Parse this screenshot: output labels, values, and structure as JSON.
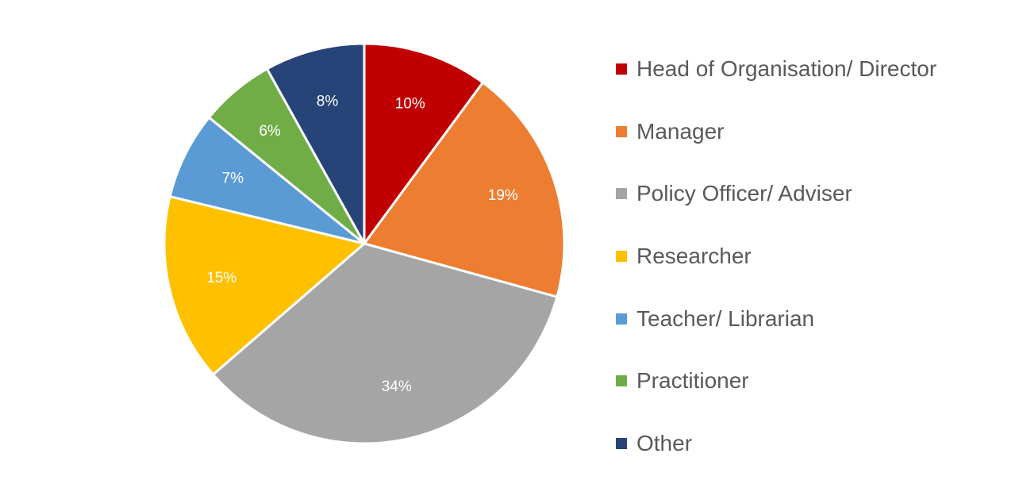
{
  "chart_data": {
    "type": "pie",
    "title": "",
    "legend_position": "right",
    "slices": [
      {
        "name": "Head of Organisation/ Director",
        "value": 10,
        "label": "10%",
        "color": "#C00000"
      },
      {
        "name": "Manager",
        "value": 19,
        "label": "19%",
        "color": "#ED7D31"
      },
      {
        "name": "Policy Officer/ Adviser",
        "value": 34,
        "label": "34%",
        "color": "#A5A5A5"
      },
      {
        "name": "Researcher",
        "value": 15,
        "label": "15%",
        "color": "#FFC000"
      },
      {
        "name": "Teacher/ Librarian",
        "value": 7,
        "label": "7%",
        "color": "#5B9BD5"
      },
      {
        "name": "Practitioner",
        "value": 6,
        "label": "6%",
        "color": "#70AD47"
      },
      {
        "name": "Other",
        "value": 8,
        "label": "8%",
        "color": "#264478"
      }
    ]
  }
}
